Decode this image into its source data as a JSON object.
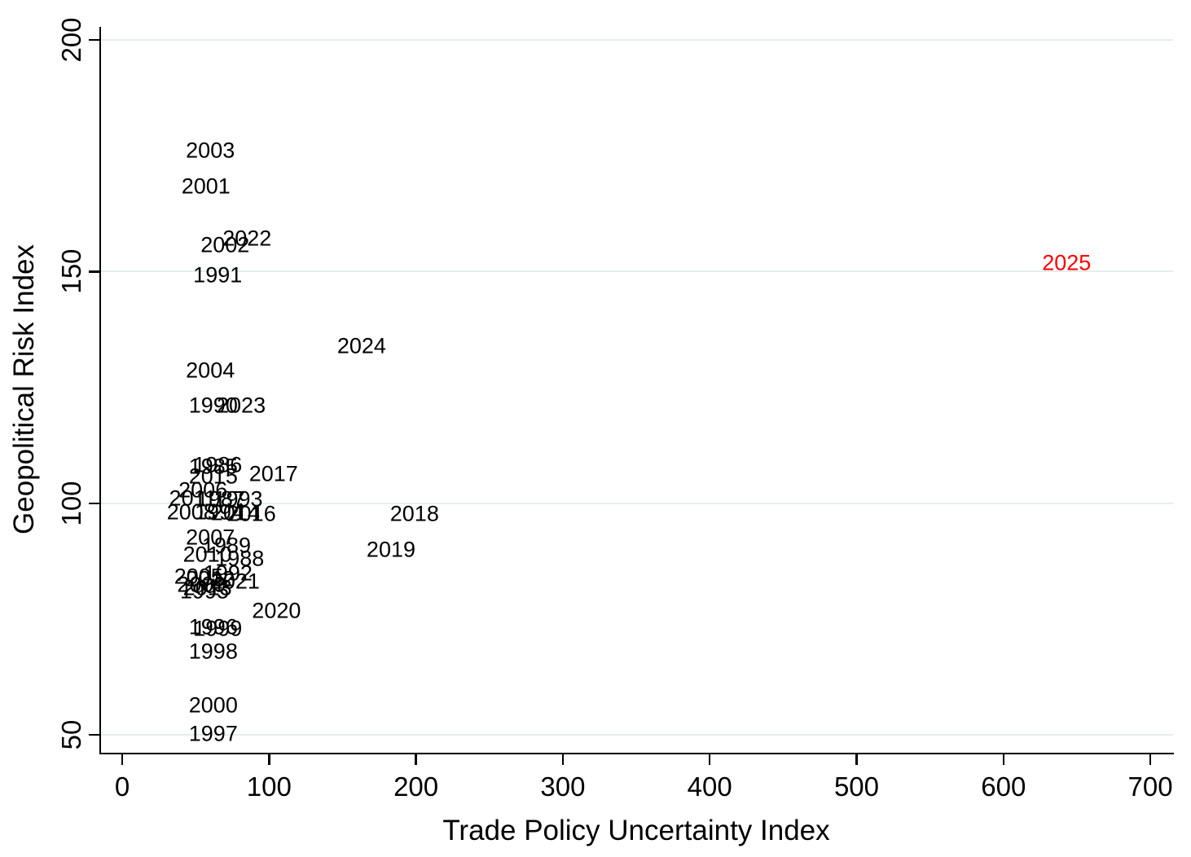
{
  "chart_data": {
    "type": "scatter",
    "title": "",
    "xlabel": "Trade Policy Uncertainty Index",
    "ylabel": "Geopolitical Risk Index",
    "xlim": [
      -15,
      715.5
    ],
    "ylim": [
      46,
      202.8
    ],
    "x_ticks": [
      0,
      100,
      200,
      300,
      400,
      500,
      600,
      700
    ],
    "y_ticks": [
      50,
      100,
      150,
      200
    ],
    "grid": "horizontal",
    "gridline_color": "#e4edee",
    "marker_style": "year-text-labels",
    "default_label_color": "#000000",
    "highlight_color": "#fe0000",
    "points": [
      {
        "year": "1985",
        "x": 62,
        "y": 107.9
      },
      {
        "year": "1986",
        "x": 65,
        "y": 108.3
      },
      {
        "year": "1987",
        "x": 67,
        "y": 100.9
      },
      {
        "year": "1988",
        "x": 80,
        "y": 88.0
      },
      {
        "year": "1989",
        "x": 71,
        "y": 90.8
      },
      {
        "year": "1990",
        "x": 62,
        "y": 121.1
      },
      {
        "year": "1991",
        "x": 65,
        "y": 149.1
      },
      {
        "year": "1992",
        "x": 72,
        "y": 84.9
      },
      {
        "year": "1993",
        "x": 79,
        "y": 100.8
      },
      {
        "year": "1994",
        "x": 66,
        "y": 98.0
      },
      {
        "year": "1995",
        "x": 56,
        "y": 81.0
      },
      {
        "year": "1996",
        "x": 62,
        "y": 73.3
      },
      {
        "year": "1997",
        "x": 62,
        "y": 50.2
      },
      {
        "year": "1998",
        "x": 62,
        "y": 67.9
      },
      {
        "year": "1999",
        "x": 65,
        "y": 72.9
      },
      {
        "year": "2000",
        "x": 62,
        "y": 56.4
      },
      {
        "year": "2001",
        "x": 57,
        "y": 168.4
      },
      {
        "year": "2002",
        "x": 70,
        "y": 155.7
      },
      {
        "year": "2003",
        "x": 60,
        "y": 176.0
      },
      {
        "year": "2004",
        "x": 60,
        "y": 128.7
      },
      {
        "year": "2005",
        "x": 52,
        "y": 84.2
      },
      {
        "year": "2006",
        "x": 55,
        "y": 102.7
      },
      {
        "year": "2007",
        "x": 60,
        "y": 92.6
      },
      {
        "year": "2008",
        "x": 47,
        "y": 98.1
      },
      {
        "year": "2009",
        "x": 54,
        "y": 82.3
      },
      {
        "year": "2010",
        "x": 58,
        "y": 88.9
      },
      {
        "year": "2011",
        "x": 48,
        "y": 101.0
      },
      {
        "year": "2012",
        "x": 60,
        "y": 83.6
      },
      {
        "year": "2013",
        "x": 58,
        "y": 81.6
      },
      {
        "year": "2014",
        "x": 77,
        "y": 97.9
      },
      {
        "year": "2015",
        "x": 62,
        "y": 105.7
      },
      {
        "year": "2016",
        "x": 88,
        "y": 97.7
      },
      {
        "year": "2017",
        "x": 103,
        "y": 106.3
      },
      {
        "year": "2018",
        "x": 199,
        "y": 97.7
      },
      {
        "year": "2019",
        "x": 183,
        "y": 89.9
      },
      {
        "year": "2020",
        "x": 105,
        "y": 76.8
      },
      {
        "year": "2021",
        "x": 77,
        "y": 83.1
      },
      {
        "year": "2022",
        "x": 85,
        "y": 157.1
      },
      {
        "year": "2023",
        "x": 81,
        "y": 121.1
      },
      {
        "year": "2024",
        "x": 163,
        "y": 133.9
      },
      {
        "year": "2025",
        "x": 643,
        "y": 151.8,
        "color": "#fe0000"
      }
    ]
  }
}
